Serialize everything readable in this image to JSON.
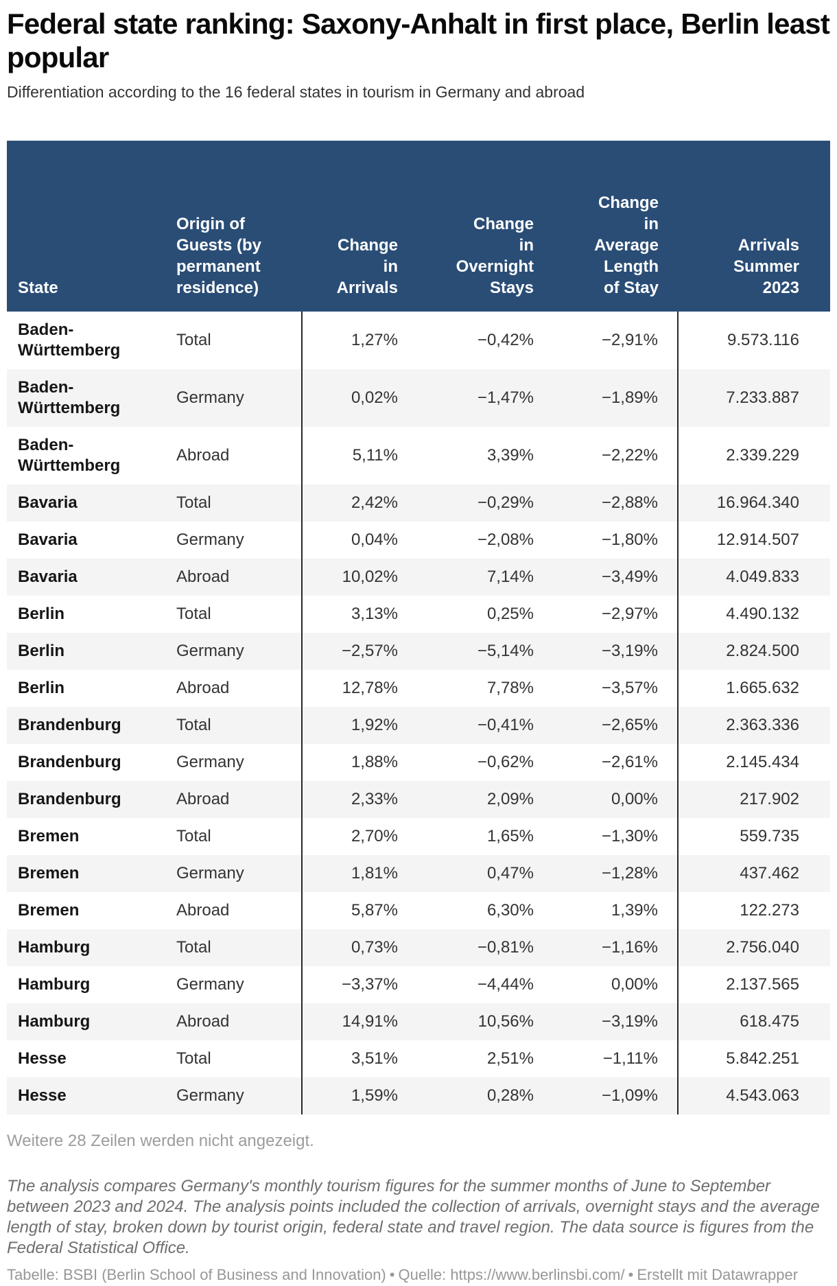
{
  "header": {
    "title": "Federal state ranking: Saxony-Anhalt in first place, Berlin least popular",
    "subtitle": "Differentiation according to the 16 federal states in tourism in Germany and abroad"
  },
  "chart_data": {
    "type": "table",
    "title": "Federal state ranking: Saxony-Anhalt in first place, Berlin least popular",
    "subtitle": "Differentiation according to the 16 federal states in tourism in Germany and abroad",
    "legend_position": "none",
    "grid": "row-stripes",
    "columns": [
      {
        "key": "state",
        "label": "State",
        "align": "left"
      },
      {
        "key": "origin",
        "label": "Origin of\nGuests (by\npermanent\nresidence)",
        "align": "left"
      },
      {
        "key": "change_arrivals",
        "label": "Change\nin\nArrivals",
        "align": "right"
      },
      {
        "key": "change_overnight_stays",
        "label": "Change\nin\nOvernight\nStays",
        "align": "right"
      },
      {
        "key": "change_avg_length_of_stay",
        "label": "Change\nin\nAverage\nLength\nof Stay",
        "align": "right"
      },
      {
        "key": "arrivals_summer_2023",
        "label": "Arrivals\nSummer\n2023",
        "align": "right"
      }
    ],
    "rows": [
      {
        "state": "Baden-Württemberg",
        "origin": "Total",
        "change_arrivals": "1,27%",
        "change_overnight_stays": "−0,42%",
        "change_avg_length_of_stay": "−2,91%",
        "arrivals_summer_2023": "9.573.116"
      },
      {
        "state": "Baden-Württemberg",
        "origin": "Germany",
        "change_arrivals": "0,02%",
        "change_overnight_stays": "−1,47%",
        "change_avg_length_of_stay": "−1,89%",
        "arrivals_summer_2023": "7.233.887"
      },
      {
        "state": "Baden-Württemberg",
        "origin": "Abroad",
        "change_arrivals": "5,11%",
        "change_overnight_stays": "3,39%",
        "change_avg_length_of_stay": "−2,22%",
        "arrivals_summer_2023": "2.339.229"
      },
      {
        "state": "Bavaria",
        "origin": "Total",
        "change_arrivals": "2,42%",
        "change_overnight_stays": "−0,29%",
        "change_avg_length_of_stay": "−2,88%",
        "arrivals_summer_2023": "16.964.340"
      },
      {
        "state": "Bavaria",
        "origin": "Germany",
        "change_arrivals": "0,04%",
        "change_overnight_stays": "−2,08%",
        "change_avg_length_of_stay": "−1,80%",
        "arrivals_summer_2023": "12.914.507"
      },
      {
        "state": "Bavaria",
        "origin": "Abroad",
        "change_arrivals": "10,02%",
        "change_overnight_stays": "7,14%",
        "change_avg_length_of_stay": "−3,49%",
        "arrivals_summer_2023": "4.049.833"
      },
      {
        "state": "Berlin",
        "origin": "Total",
        "change_arrivals": "3,13%",
        "change_overnight_stays": "0,25%",
        "change_avg_length_of_stay": "−2,97%",
        "arrivals_summer_2023": "4.490.132"
      },
      {
        "state": "Berlin",
        "origin": "Germany",
        "change_arrivals": "−2,57%",
        "change_overnight_stays": "−5,14%",
        "change_avg_length_of_stay": "−3,19%",
        "arrivals_summer_2023": "2.824.500"
      },
      {
        "state": "Berlin",
        "origin": "Abroad",
        "change_arrivals": "12,78%",
        "change_overnight_stays": "7,78%",
        "change_avg_length_of_stay": "−3,57%",
        "arrivals_summer_2023": "1.665.632"
      },
      {
        "state": "Brandenburg",
        "origin": "Total",
        "change_arrivals": "1,92%",
        "change_overnight_stays": "−0,41%",
        "change_avg_length_of_stay": "−2,65%",
        "arrivals_summer_2023": "2.363.336"
      },
      {
        "state": "Brandenburg",
        "origin": "Germany",
        "change_arrivals": "1,88%",
        "change_overnight_stays": "−0,62%",
        "change_avg_length_of_stay": "−2,61%",
        "arrivals_summer_2023": "2.145.434"
      },
      {
        "state": "Brandenburg",
        "origin": "Abroad",
        "change_arrivals": "2,33%",
        "change_overnight_stays": "2,09%",
        "change_avg_length_of_stay": "0,00%",
        "arrivals_summer_2023": "217.902"
      },
      {
        "state": "Bremen",
        "origin": "Total",
        "change_arrivals": "2,70%",
        "change_overnight_stays": "1,65%",
        "change_avg_length_of_stay": "−1,30%",
        "arrivals_summer_2023": "559.735"
      },
      {
        "state": "Bremen",
        "origin": "Germany",
        "change_arrivals": "1,81%",
        "change_overnight_stays": "0,47%",
        "change_avg_length_of_stay": "−1,28%",
        "arrivals_summer_2023": "437.462"
      },
      {
        "state": "Bremen",
        "origin": "Abroad",
        "change_arrivals": "5,87%",
        "change_overnight_stays": "6,30%",
        "change_avg_length_of_stay": "1,39%",
        "arrivals_summer_2023": "122.273"
      },
      {
        "state": "Hamburg",
        "origin": "Total",
        "change_arrivals": "0,73%",
        "change_overnight_stays": "−0,81%",
        "change_avg_length_of_stay": "−1,16%",
        "arrivals_summer_2023": "2.756.040"
      },
      {
        "state": "Hamburg",
        "origin": "Germany",
        "change_arrivals": "−3,37%",
        "change_overnight_stays": "−4,44%",
        "change_avg_length_of_stay": "0,00%",
        "arrivals_summer_2023": "2.137.565"
      },
      {
        "state": "Hamburg",
        "origin": "Abroad",
        "change_arrivals": "14,91%",
        "change_overnight_stays": "10,56%",
        "change_avg_length_of_stay": "−3,19%",
        "arrivals_summer_2023": "618.475"
      },
      {
        "state": "Hesse",
        "origin": "Total",
        "change_arrivals": "3,51%",
        "change_overnight_stays": "2,51%",
        "change_avg_length_of_stay": "−1,11%",
        "arrivals_summer_2023": "5.842.251"
      },
      {
        "state": "Hesse",
        "origin": "Germany",
        "change_arrivals": "1,59%",
        "change_overnight_stays": "0,28%",
        "change_avg_length_of_stay": "−1,09%",
        "arrivals_summer_2023": "4.543.063"
      }
    ]
  },
  "footer": {
    "note": "Weitere 28 Zeilen werden nicht angezeigt.",
    "description": "The analysis compares Germany's monthly tourism figures for the summer months of June to September between 2023 and 2024. The analysis points included the collection of arrivals, overnight stays and the average length of stay, broken down by tourist origin, federal state and travel region. The data source is figures from the Federal Statistical Office.",
    "credit_table": "Tabelle: BSBI (Berlin School of Business and Innovation)",
    "bullet": "•",
    "source_label": "Quelle:",
    "source_url": "https://www.berlinsbi.com/",
    "created_with": "Erstellt mit Datawrapper"
  },
  "colors": {
    "header_bg": "#2a4d76",
    "header_text": "#ffffff",
    "stripe": "#f4f4f4",
    "divider": "#282828",
    "title_color": "#0a0a0a"
  }
}
